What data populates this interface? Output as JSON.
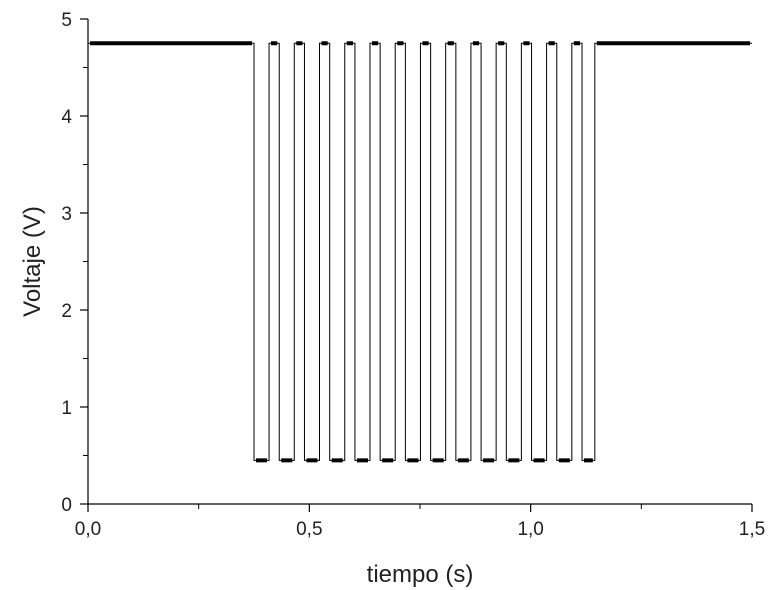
{
  "chart_data": {
    "type": "line",
    "title": "",
    "xlabel": "tiempo (s)",
    "ylabel": "Voltaje (V)",
    "xlim": [
      0,
      1.5
    ],
    "ylim": [
      0,
      5
    ],
    "x_ticks": [
      {
        "value": 0,
        "label": "0,0"
      },
      {
        "value": 0.5,
        "label": "0,5"
      },
      {
        "value": 1.0,
        "label": "1,0"
      },
      {
        "value": 1.5,
        "label": "1,5"
      }
    ],
    "y_ticks": [
      {
        "value": 0,
        "label": "0"
      },
      {
        "value": 1,
        "label": "1"
      },
      {
        "value": 2,
        "label": "2"
      },
      {
        "value": 3,
        "label": "3"
      },
      {
        "value": 4,
        "label": "4"
      },
      {
        "value": 5,
        "label": "5"
      }
    ],
    "grid": false,
    "legend": "none",
    "series": [
      {
        "high_level": 4.75,
        "low_level": 0.45,
        "x": [
          0,
          0.375,
          0.375,
          0.409,
          0.409,
          0.432,
          0.432,
          0.466,
          0.466,
          0.489,
          0.489,
          0.523,
          0.523,
          0.546,
          0.546,
          0.58,
          0.58,
          0.603,
          0.603,
          0.637,
          0.637,
          0.66,
          0.66,
          0.694,
          0.694,
          0.717,
          0.717,
          0.751,
          0.751,
          0.774,
          0.774,
          0.808,
          0.808,
          0.831,
          0.831,
          0.865,
          0.865,
          0.888,
          0.888,
          0.922,
          0.922,
          0.945,
          0.945,
          0.979,
          0.979,
          1.002,
          1.002,
          1.036,
          1.036,
          1.059,
          1.059,
          1.093,
          1.093,
          1.116,
          1.116,
          1.145,
          1.145,
          1.5
        ],
        "y": [
          4.75,
          4.75,
          0.45,
          0.45,
          4.75,
          4.75,
          0.45,
          0.45,
          4.75,
          4.75,
          0.45,
          0.45,
          4.75,
          4.75,
          0.45,
          0.45,
          4.75,
          4.75,
          0.45,
          0.45,
          4.75,
          4.75,
          0.45,
          0.45,
          4.75,
          4.75,
          0.45,
          0.45,
          4.75,
          4.75,
          0.45,
          0.45,
          4.75,
          4.75,
          0.45,
          0.45,
          4.75,
          4.75,
          0.45,
          0.45,
          4.75,
          4.75,
          0.45,
          0.45,
          4.75,
          4.75,
          0.45,
          0.45,
          4.75,
          4.75,
          0.45,
          0.45,
          4.75,
          4.75,
          0.45,
          0.45,
          4.75,
          4.75
        ],
        "color": "#000000"
      }
    ]
  }
}
